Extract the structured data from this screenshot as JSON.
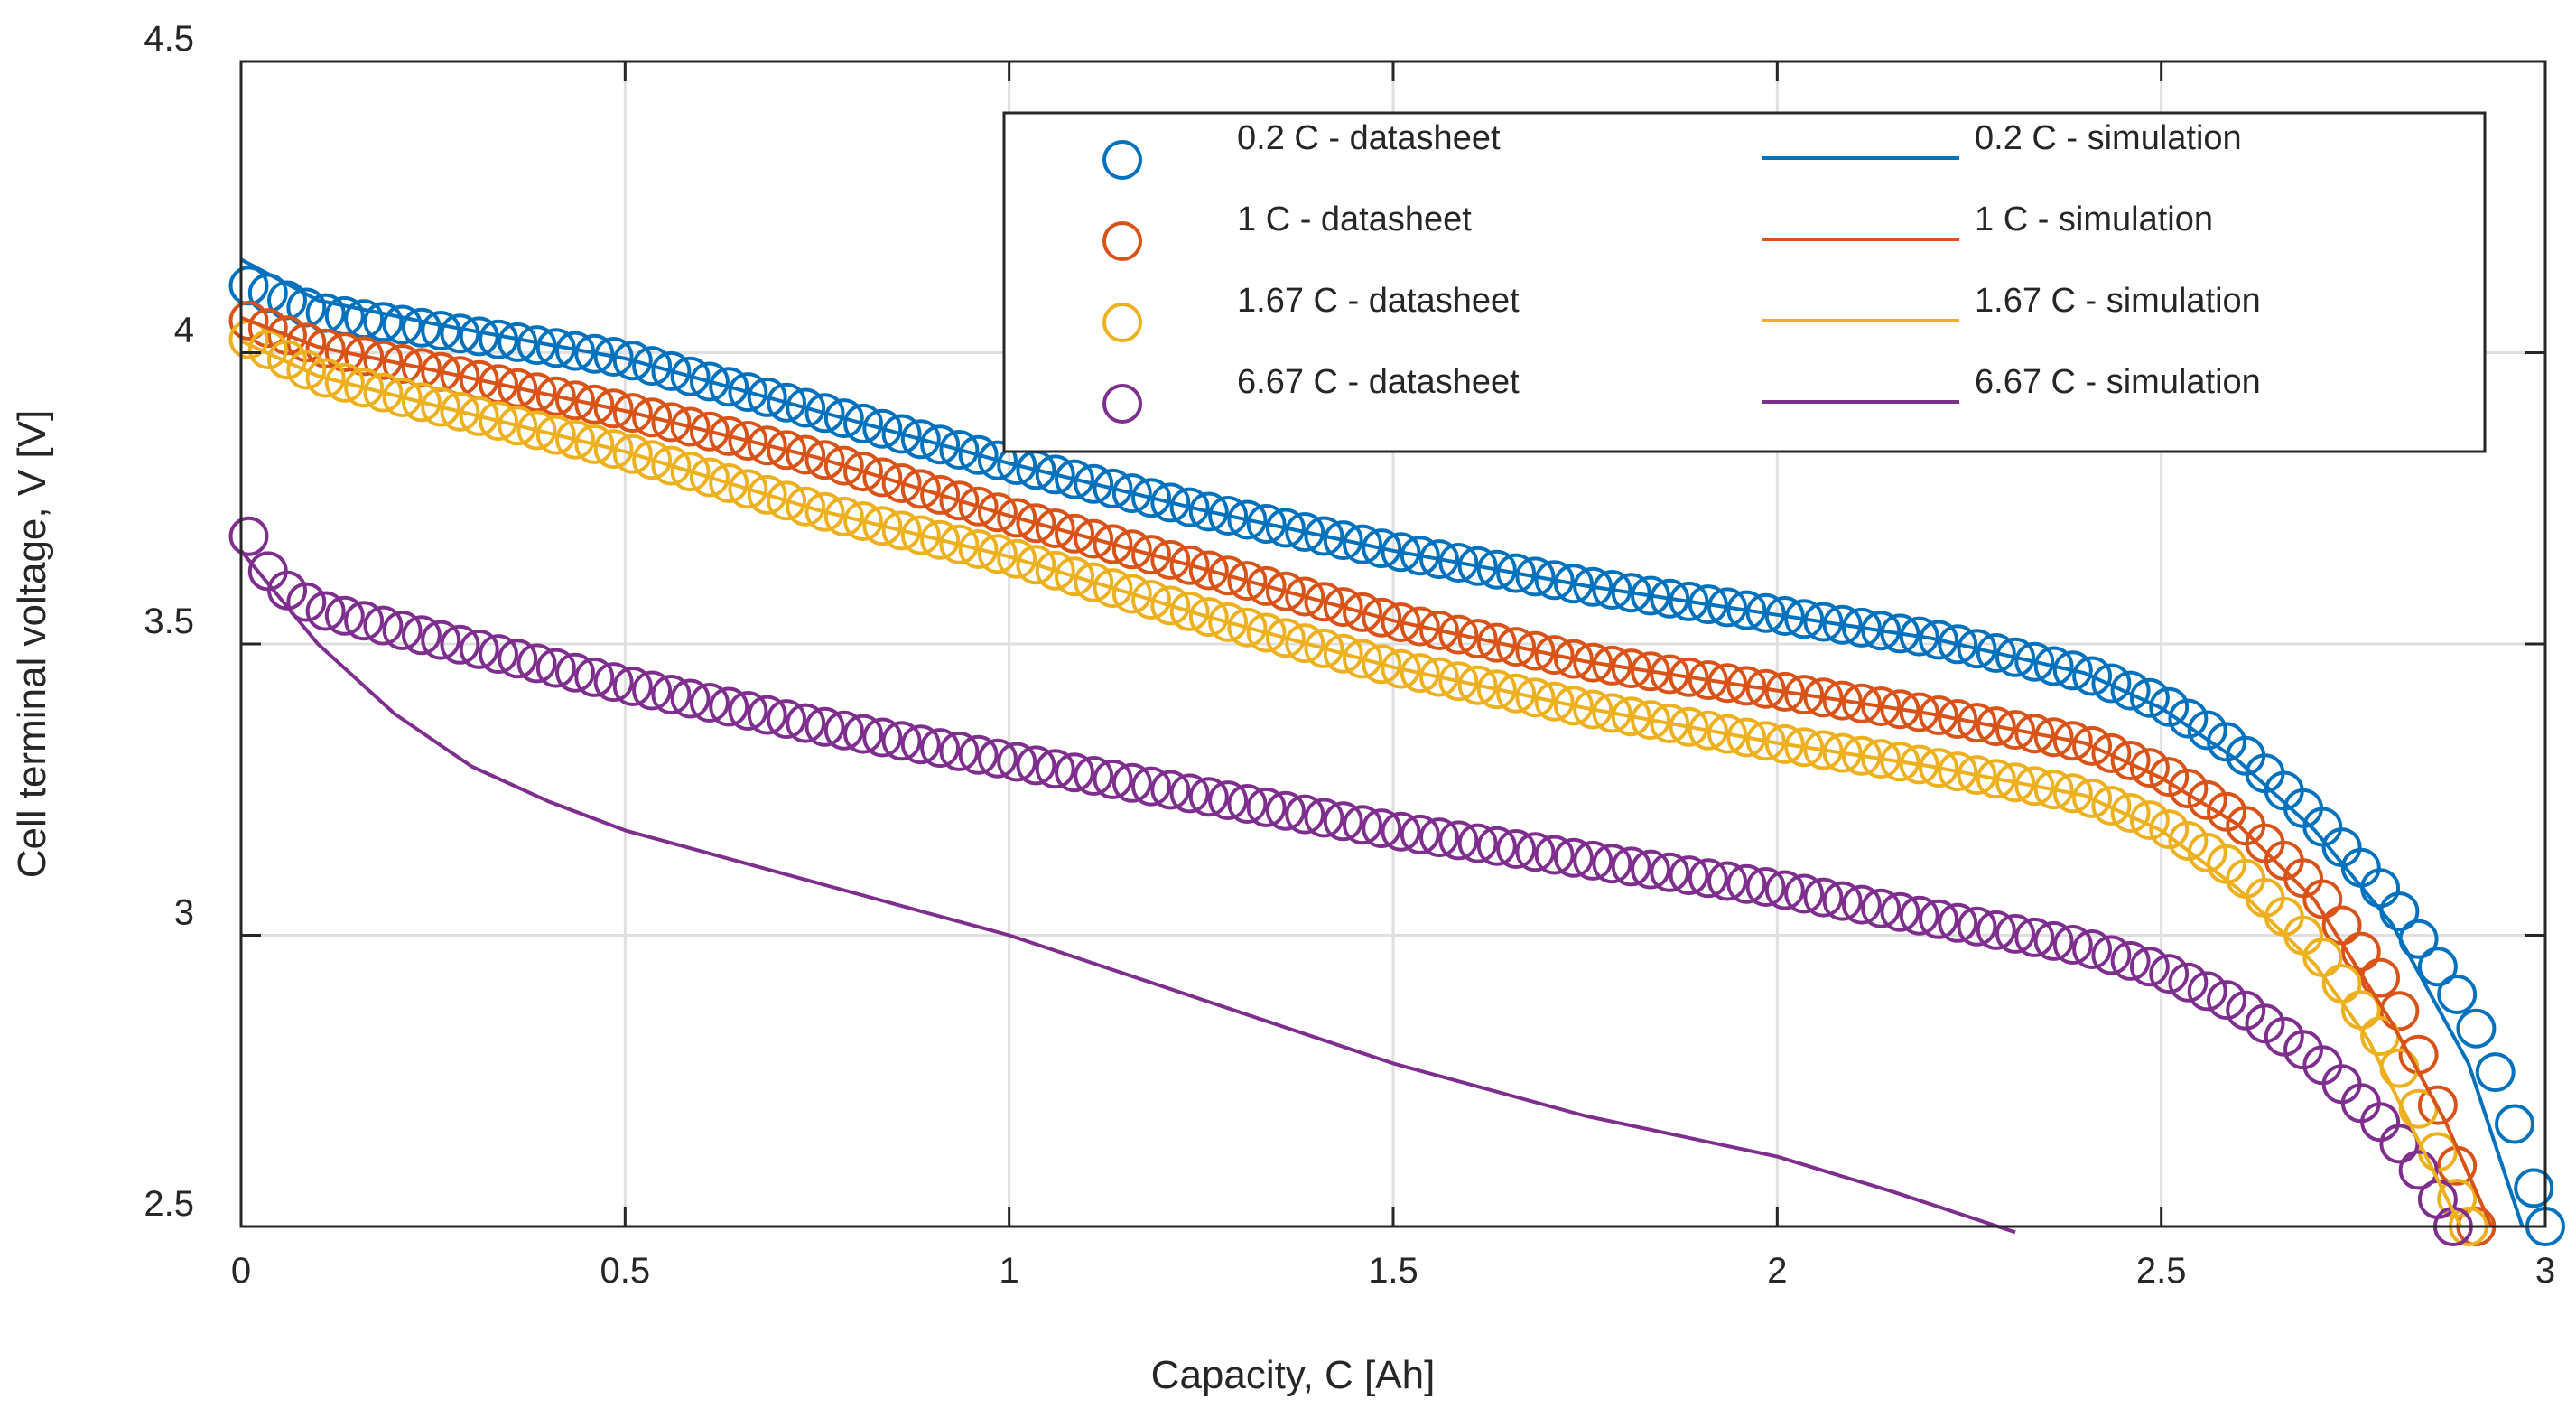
{
  "chart_data": {
    "type": "line",
    "title": "",
    "xlabel": "Capacity, C [Ah]",
    "ylabel": "Cell terminal voltage, V [V]",
    "xlim": [
      0,
      3
    ],
    "ylim": [
      2.5,
      4.5
    ],
    "xticks": [
      0,
      0.5,
      1,
      1.5,
      2,
      2.5,
      3
    ],
    "xtick_labels": [
      "0",
      "0.5",
      "1",
      "1.5",
      "2",
      "2.5",
      "3"
    ],
    "yticks": [
      2.5,
      3,
      3.5,
      4,
      4.5
    ],
    "ytick_labels": [
      "2.5",
      "3",
      "3.5",
      "4",
      "4.5"
    ],
    "grid": true,
    "legend_position": "top-right",
    "series": [
      {
        "name": "0.2 C - datasheet",
        "style": "markers",
        "marker": "circle",
        "color": "#0072BD",
        "x_end": 3.0,
        "x_step": 0.025,
        "anchors": [
          [
            0,
            4.12
          ],
          [
            0.1,
            4.07
          ],
          [
            0.25,
            4.04
          ],
          [
            0.5,
            3.99
          ],
          [
            0.75,
            3.9
          ],
          [
            1.0,
            3.81
          ],
          [
            1.25,
            3.73
          ],
          [
            1.5,
            3.66
          ],
          [
            1.75,
            3.6
          ],
          [
            2.0,
            3.55
          ],
          [
            2.2,
            3.51
          ],
          [
            2.4,
            3.45
          ],
          [
            2.5,
            3.4
          ],
          [
            2.6,
            3.32
          ],
          [
            2.7,
            3.2
          ],
          [
            2.8,
            3.06
          ],
          [
            2.9,
            2.87
          ],
          [
            2.95,
            2.72
          ],
          [
            3.0,
            2.5
          ]
        ]
      },
      {
        "name": "1 C - datasheet",
        "style": "markers",
        "marker": "circle",
        "color": "#D95319",
        "x_end": 2.91,
        "x_step": 0.025,
        "anchors": [
          [
            0,
            4.06
          ],
          [
            0.1,
            4.01
          ],
          [
            0.25,
            3.97
          ],
          [
            0.5,
            3.9
          ],
          [
            0.75,
            3.82
          ],
          [
            1.0,
            3.72
          ],
          [
            1.25,
            3.63
          ],
          [
            1.5,
            3.54
          ],
          [
            1.75,
            3.47
          ],
          [
            2.0,
            3.42
          ],
          [
            2.2,
            3.38
          ],
          [
            2.4,
            3.33
          ],
          [
            2.5,
            3.28
          ],
          [
            2.6,
            3.2
          ],
          [
            2.7,
            3.08
          ],
          [
            2.8,
            2.9
          ],
          [
            2.85,
            2.75
          ],
          [
            2.91,
            2.5
          ]
        ]
      },
      {
        "name": "1.67 C - datasheet",
        "style": "markers",
        "marker": "circle",
        "color": "#EDB120",
        "x_end": 2.9,
        "x_step": 0.025,
        "anchors": [
          [
            0,
            4.03
          ],
          [
            0.1,
            3.96
          ],
          [
            0.25,
            3.91
          ],
          [
            0.5,
            3.83
          ],
          [
            0.75,
            3.73
          ],
          [
            1.0,
            3.65
          ],
          [
            1.25,
            3.55
          ],
          [
            1.5,
            3.46
          ],
          [
            1.75,
            3.39
          ],
          [
            2.0,
            3.33
          ],
          [
            2.2,
            3.29
          ],
          [
            2.4,
            3.24
          ],
          [
            2.5,
            3.19
          ],
          [
            2.6,
            3.11
          ],
          [
            2.7,
            2.98
          ],
          [
            2.8,
            2.8
          ],
          [
            2.85,
            2.66
          ],
          [
            2.9,
            2.5
          ]
        ]
      },
      {
        "name": "6.67 C - datasheet",
        "style": "markers",
        "marker": "circle",
        "color": "#7E2F8E",
        "x_end": 2.88,
        "x_step": 0.025,
        "anchors": [
          [
            0,
            3.72
          ],
          [
            0.02,
            3.65
          ],
          [
            0.05,
            3.6
          ],
          [
            0.1,
            3.56
          ],
          [
            0.25,
            3.51
          ],
          [
            0.5,
            3.43
          ],
          [
            0.75,
            3.36
          ],
          [
            1.0,
            3.3
          ],
          [
            1.25,
            3.24
          ],
          [
            1.5,
            3.18
          ],
          [
            1.75,
            3.13
          ],
          [
            2.0,
            3.08
          ],
          [
            2.2,
            3.03
          ],
          [
            2.4,
            2.98
          ],
          [
            2.5,
            2.94
          ],
          [
            2.6,
            2.88
          ],
          [
            2.7,
            2.79
          ],
          [
            2.8,
            2.66
          ],
          [
            2.85,
            2.57
          ],
          [
            2.88,
            2.5
          ]
        ]
      },
      {
        "name": "0.2 C - simulation",
        "style": "line",
        "color": "#0072BD",
        "x": [
          0,
          0.1,
          0.25,
          0.5,
          0.75,
          1.0,
          1.25,
          1.5,
          1.75,
          2.0,
          2.2,
          2.4,
          2.5,
          2.6,
          2.7,
          2.8,
          2.9,
          2.97
        ],
        "y": [
          4.16,
          4.09,
          4.05,
          3.99,
          3.9,
          3.81,
          3.73,
          3.66,
          3.6,
          3.55,
          3.51,
          3.45,
          3.39,
          3.3,
          3.18,
          3.02,
          2.78,
          2.5
        ]
      },
      {
        "name": "1 C - simulation",
        "style": "line",
        "color": "#D95319",
        "x": [
          0,
          0.1,
          0.25,
          0.5,
          0.75,
          1.0,
          1.25,
          1.5,
          1.75,
          2.0,
          2.2,
          2.4,
          2.5,
          2.6,
          2.7,
          2.8,
          2.87,
          2.93
        ],
        "y": [
          4.06,
          4.01,
          3.97,
          3.9,
          3.82,
          3.72,
          3.63,
          3.54,
          3.47,
          3.42,
          3.38,
          3.33,
          3.27,
          3.19,
          3.06,
          2.85,
          2.68,
          2.5
        ]
      },
      {
        "name": "1.67 C - simulation",
        "style": "line",
        "color": "#EDB120",
        "x": [
          0,
          0.1,
          0.25,
          0.5,
          0.75,
          1.0,
          1.25,
          1.5,
          1.75,
          2.0,
          2.2,
          2.4,
          2.5,
          2.6,
          2.7,
          2.77,
          2.83,
          2.89
        ],
        "y": [
          4.02,
          3.96,
          3.91,
          3.83,
          3.73,
          3.65,
          3.55,
          3.46,
          3.39,
          3.33,
          3.29,
          3.24,
          3.18,
          3.08,
          2.95,
          2.82,
          2.66,
          2.5
        ]
      },
      {
        "name": "6.67 C - simulation",
        "style": "line",
        "color": "#7E2F8E",
        "x": [
          0,
          0.05,
          0.1,
          0.2,
          0.3,
          0.4,
          0.5,
          0.75,
          1.0,
          1.25,
          1.5,
          1.75,
          2.0,
          2.15,
          2.31
        ],
        "y": [
          3.66,
          3.58,
          3.5,
          3.38,
          3.29,
          3.23,
          3.18,
          3.09,
          3.0,
          2.89,
          2.78,
          2.69,
          2.62,
          2.56,
          2.49
        ]
      }
    ]
  }
}
